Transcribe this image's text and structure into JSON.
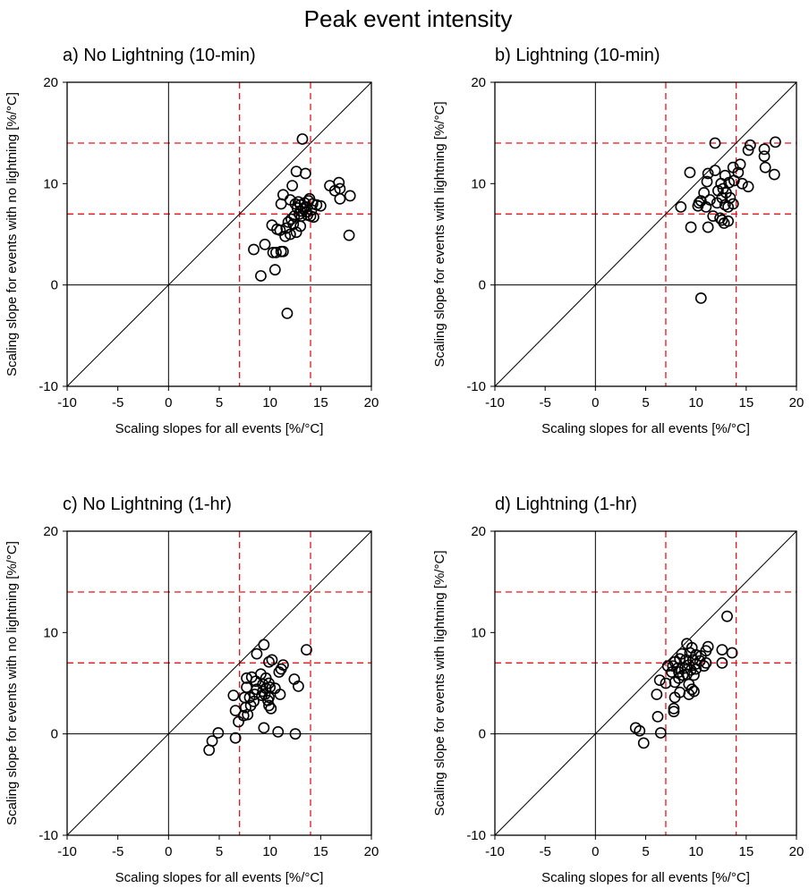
{
  "title": "Peak event intensity",
  "colors": {
    "axis": "#000000",
    "threshold": "#e8141c",
    "marker": "#000000",
    "background": "#ffffff"
  },
  "chart_data": [
    {
      "type": "scatter",
      "title": "a) No Lightning (10-min)",
      "xlabel": "Scaling slopes for all events [%/°C]",
      "ylabel": "Scaling slope for events with no lightning [%/°C]",
      "xlim": [
        -10,
        20
      ],
      "ylim": [
        -10,
        20
      ],
      "xticks": [
        "-10",
        "-5",
        "0",
        "5",
        "10",
        "15",
        "20"
      ],
      "yticks": [
        "-10",
        "0",
        "10",
        "20"
      ],
      "reference_lines": {
        "one_to_one": true,
        "zero_lines": true,
        "dashed_x": [
          7,
          14
        ],
        "dashed_y": [
          7,
          14
        ]
      },
      "points": [
        [
          13.2,
          14.4
        ],
        [
          12.6,
          11.2
        ],
        [
          13.5,
          11.0
        ],
        [
          12.2,
          9.8
        ],
        [
          11.3,
          8.9
        ],
        [
          12.0,
          8.4
        ],
        [
          11.1,
          8.0
        ],
        [
          12.5,
          8.0
        ],
        [
          12.8,
          8.2
        ],
        [
          13.0,
          7.9
        ],
        [
          13.4,
          8.1
        ],
        [
          13.8,
          8.3
        ],
        [
          14.2,
          8.0
        ],
        [
          14.6,
          7.9
        ],
        [
          13.0,
          7.3
        ],
        [
          13.3,
          7.5
        ],
        [
          12.7,
          7.6
        ],
        [
          13.6,
          7.2
        ],
        [
          14.1,
          7.4
        ],
        [
          12.9,
          7.0
        ],
        [
          13.1,
          6.8
        ],
        [
          12.4,
          6.8
        ],
        [
          13.7,
          6.9
        ],
        [
          14.3,
          6.7
        ],
        [
          12.1,
          6.5
        ],
        [
          11.8,
          6.2
        ],
        [
          12.3,
          6.0
        ],
        [
          13.0,
          5.8
        ],
        [
          11.6,
          5.6
        ],
        [
          12.6,
          5.2
        ],
        [
          11.0,
          5.4
        ],
        [
          12.0,
          5.0
        ],
        [
          10.2,
          5.9
        ],
        [
          10.7,
          5.5
        ],
        [
          11.5,
          4.8
        ],
        [
          10.3,
          3.2
        ],
        [
          10.6,
          3.2
        ],
        [
          11.1,
          3.3
        ],
        [
          11.3,
          3.3
        ],
        [
          9.5,
          4.0
        ],
        [
          8.4,
          3.5
        ],
        [
          10.5,
          1.5
        ],
        [
          9.1,
          0.9
        ],
        [
          11.7,
          -2.8
        ],
        [
          15.9,
          9.8
        ],
        [
          16.8,
          10.1
        ],
        [
          16.9,
          9.5
        ],
        [
          16.4,
          9.3
        ],
        [
          17.9,
          8.8
        ],
        [
          16.9,
          8.5
        ],
        [
          17.8,
          4.9
        ],
        [
          15.0,
          7.8
        ],
        [
          13.9,
          8.5
        ],
        [
          14.0,
          6.8
        ],
        [
          13.5,
          7.7
        ]
      ]
    },
    {
      "type": "scatter",
      "title": "b) Lightning (10-min)",
      "xlabel": "Scaling slopes for all events [%/°C]",
      "ylabel": "Scaling slope for events with lightning [%/°C]",
      "xlim": [
        -10,
        20
      ],
      "ylim": [
        -10,
        20
      ],
      "xticks": [
        "-10",
        "-5",
        "0",
        "5",
        "10",
        "15",
        "20"
      ],
      "yticks": [
        "-10",
        "0",
        "10",
        "20"
      ],
      "reference_lines": {
        "one_to_one": true,
        "zero_lines": true,
        "dashed_x": [
          7,
          14
        ],
        "dashed_y": [
          7,
          14
        ]
      },
      "points": [
        [
          11.9,
          14.0
        ],
        [
          15.4,
          13.8
        ],
        [
          15.2,
          13.3
        ],
        [
          17.9,
          14.1
        ],
        [
          16.8,
          13.4
        ],
        [
          16.8,
          12.7
        ],
        [
          16.9,
          11.6
        ],
        [
          17.8,
          10.9
        ],
        [
          9.4,
          11.1
        ],
        [
          11.2,
          11.0
        ],
        [
          11.9,
          11.3
        ],
        [
          12.9,
          10.8
        ],
        [
          13.7,
          11.6
        ],
        [
          14.4,
          11.9
        ],
        [
          14.2,
          11.1
        ],
        [
          12.5,
          10.0
        ],
        [
          13.3,
          10.1
        ],
        [
          13.8,
          10.3
        ],
        [
          14.6,
          10.0
        ],
        [
          15.2,
          9.7
        ],
        [
          11.1,
          10.2
        ],
        [
          12.2,
          9.3
        ],
        [
          13.0,
          9.1
        ],
        [
          12.6,
          8.6
        ],
        [
          11.4,
          8.4
        ],
        [
          10.8,
          9.1
        ],
        [
          10.3,
          8.1
        ],
        [
          10.5,
          8.3
        ],
        [
          12.1,
          8.1
        ],
        [
          12.9,
          7.9
        ],
        [
          13.2,
          7.7
        ],
        [
          13.7,
          8.0
        ],
        [
          13.4,
          8.6
        ],
        [
          10.2,
          7.8
        ],
        [
          8.5,
          7.7
        ],
        [
          11.0,
          7.7
        ],
        [
          11.7,
          6.8
        ],
        [
          12.4,
          6.6
        ],
        [
          12.6,
          6.4
        ],
        [
          13.2,
          6.3
        ],
        [
          12.8,
          6.1
        ],
        [
          9.5,
          5.7
        ],
        [
          11.2,
          5.7
        ],
        [
          10.5,
          -1.3
        ],
        [
          12.7,
          9.5
        ]
      ]
    },
    {
      "type": "scatter",
      "title": "c) No Lightning (1-hr)",
      "xlabel": "Scaling slopes for all events [%/°C]",
      "ylabel": "Scaling slope for events with no lightning [%/°C]",
      "xlim": [
        -10,
        20
      ],
      "ylim": [
        -10,
        20
      ],
      "xticks": [
        "-10",
        "-5",
        "0",
        "5",
        "10",
        "15",
        "20"
      ],
      "yticks": [
        "-10",
        "0",
        "10",
        "20"
      ],
      "reference_lines": {
        "one_to_one": true,
        "zero_lines": true,
        "dashed_x": [
          7,
          14
        ],
        "dashed_y": [
          7,
          14
        ]
      },
      "points": [
        [
          9.4,
          8.8
        ],
        [
          8.7,
          7.9
        ],
        [
          9.9,
          7.1
        ],
        [
          10.2,
          7.3
        ],
        [
          11.3,
          6.8
        ],
        [
          11.1,
          6.4
        ],
        [
          10.9,
          6.1
        ],
        [
          13.6,
          8.3
        ],
        [
          12.4,
          5.4
        ],
        [
          12.8,
          4.7
        ],
        [
          8.2,
          5.6
        ],
        [
          9.1,
          5.9
        ],
        [
          9.6,
          5.5
        ],
        [
          8.6,
          5.2
        ],
        [
          7.7,
          5.5
        ],
        [
          9.3,
          4.9
        ],
        [
          9.9,
          5.0
        ],
        [
          9.6,
          4.5
        ],
        [
          7.7,
          4.6
        ],
        [
          8.7,
          4.4
        ],
        [
          9.3,
          4.2
        ],
        [
          10.0,
          4.6
        ],
        [
          10.5,
          4.5
        ],
        [
          8.5,
          3.9
        ],
        [
          9.2,
          3.8
        ],
        [
          9.9,
          3.6
        ],
        [
          8.0,
          3.6
        ],
        [
          7.5,
          3.6
        ],
        [
          8.4,
          3.2
        ],
        [
          8.1,
          2.8
        ],
        [
          7.6,
          2.6
        ],
        [
          10.1,
          2.5
        ],
        [
          9.9,
          2.8
        ],
        [
          11.0,
          3.9
        ],
        [
          6.4,
          3.8
        ],
        [
          7.4,
          1.8
        ],
        [
          7.8,
          1.9
        ],
        [
          6.6,
          2.3
        ],
        [
          6.9,
          1.2
        ],
        [
          9.4,
          0.6
        ],
        [
          10.8,
          0.2
        ],
        [
          12.5,
          0.0
        ],
        [
          6.6,
          -0.4
        ],
        [
          4.9,
          0.1
        ],
        [
          4.3,
          -0.7
        ],
        [
          4.0,
          -1.6
        ],
        [
          9.5,
          3.9
        ],
        [
          9.8,
          3.3
        ]
      ]
    },
    {
      "type": "scatter",
      "title": "d) Lightning (1-hr)",
      "xlabel": "Scaling slopes for all events [%/°C]",
      "ylabel": "Scaling slope for events with lightning [%/°C]",
      "xlim": [
        -10,
        20
      ],
      "ylim": [
        -10,
        20
      ],
      "xticks": [
        "-10",
        "-5",
        "0",
        "5",
        "10",
        "15",
        "20"
      ],
      "yticks": [
        "-10",
        "0",
        "10",
        "20"
      ],
      "reference_lines": {
        "one_to_one": true,
        "zero_lines": true,
        "dashed_x": [
          7,
          14
        ],
        "dashed_y": [
          7,
          14
        ]
      },
      "points": [
        [
          13.1,
          11.6
        ],
        [
          9.1,
          8.9
        ],
        [
          9.6,
          8.5
        ],
        [
          11.2,
          8.6
        ],
        [
          11.0,
          8.2
        ],
        [
          12.6,
          8.3
        ],
        [
          13.6,
          8.0
        ],
        [
          8.6,
          7.9
        ],
        [
          9.4,
          8.0
        ],
        [
          10.0,
          7.8
        ],
        [
          10.5,
          7.7
        ],
        [
          8.4,
          7.4
        ],
        [
          7.9,
          7.1
        ],
        [
          9.0,
          7.3
        ],
        [
          9.7,
          7.3
        ],
        [
          10.4,
          7.2
        ],
        [
          12.6,
          7.0
        ],
        [
          7.2,
          6.7
        ],
        [
          7.7,
          6.7
        ],
        [
          8.2,
          6.5
        ],
        [
          8.9,
          6.5
        ],
        [
          9.3,
          6.8
        ],
        [
          10.0,
          6.9
        ],
        [
          10.8,
          6.7
        ],
        [
          11.0,
          7.0
        ],
        [
          9.5,
          6.3
        ],
        [
          10.0,
          6.4
        ],
        [
          8.3,
          6.1
        ],
        [
          7.6,
          6.1
        ],
        [
          8.7,
          5.8
        ],
        [
          9.1,
          5.9
        ],
        [
          9.8,
          5.8
        ],
        [
          7.0,
          5.0
        ],
        [
          6.4,
          5.3
        ],
        [
          7.9,
          5.1
        ],
        [
          8.3,
          5.5
        ],
        [
          9.3,
          4.9
        ],
        [
          9.6,
          4.4
        ],
        [
          9.8,
          4.2
        ],
        [
          9.3,
          3.9
        ],
        [
          8.4,
          4.1
        ],
        [
          7.9,
          3.6
        ],
        [
          6.1,
          3.9
        ],
        [
          7.8,
          2.5
        ],
        [
          7.8,
          2.2
        ],
        [
          6.2,
          1.7
        ],
        [
          6.5,
          0.1
        ],
        [
          4.8,
          -0.9
        ],
        [
          4.4,
          0.3
        ],
        [
          4.0,
          0.6
        ]
      ]
    }
  ]
}
